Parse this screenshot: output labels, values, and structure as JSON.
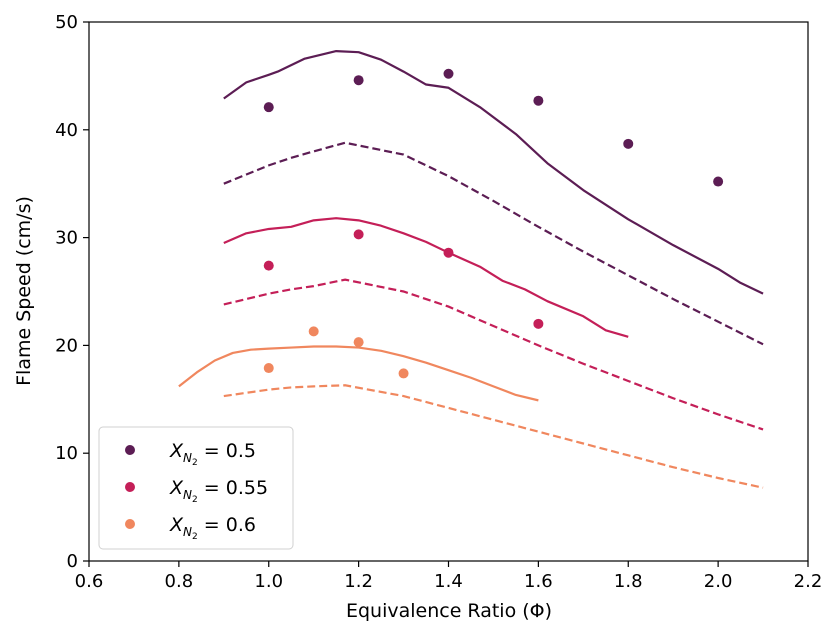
{
  "chart_data": {
    "type": "scatter",
    "xlabel": "Equivalence Ratio (Φ)",
    "ylabel": "Flame Speed (cm/s)",
    "xlim": [
      0.6,
      2.2
    ],
    "ylim": [
      0,
      50
    ],
    "xticks": [
      "0.6",
      "0.8",
      "1.0",
      "1.2",
      "1.4",
      "1.6",
      "1.8",
      "2.0",
      "2.2"
    ],
    "yticks": [
      "0",
      "10",
      "20",
      "30",
      "40",
      "50"
    ],
    "legend_position": "lower-left",
    "grid": false,
    "series": [
      {
        "name": "X_N2 = 0.5",
        "legend_main": "X",
        "legend_sub": "N",
        "legend_subsub": "2",
        "legend_value": " = 0.5",
        "color": "#5c1d54",
        "points": {
          "x": [
            1.0,
            1.2,
            1.4,
            1.6,
            1.8,
            2.0
          ],
          "y": [
            42.1,
            44.6,
            45.2,
            42.7,
            38.7,
            35.2
          ]
        },
        "solid": {
          "x": [
            0.9,
            0.95,
            1.0,
            1.02,
            1.08,
            1.15,
            1.2,
            1.25,
            1.3,
            1.35,
            1.4,
            1.47,
            1.55,
            1.62,
            1.7,
            1.8,
            1.9,
            2.0,
            2.05,
            2.1
          ],
          "y": [
            42.9,
            44.4,
            45.1,
            45.4,
            46.6,
            47.3,
            47.2,
            46.5,
            45.4,
            44.2,
            43.9,
            42.1,
            39.6,
            36.9,
            34.4,
            31.7,
            29.3,
            27.1,
            25.8,
            24.8
          ]
        },
        "dashed": {
          "x": [
            0.9,
            1.0,
            1.05,
            1.1,
            1.17,
            1.3,
            1.4,
            1.5,
            1.6,
            1.7,
            1.8,
            1.9,
            2.0,
            2.1
          ],
          "y": [
            35.0,
            36.7,
            37.4,
            38.0,
            38.8,
            37.7,
            35.7,
            33.4,
            31.0,
            28.7,
            26.5,
            24.3,
            22.2,
            20.1
          ]
        }
      },
      {
        "name": "X_N2 = 0.55",
        "legend_main": "X",
        "legend_sub": "N",
        "legend_subsub": "2",
        "legend_value": " = 0.55",
        "color": "#c41f58",
        "points": {
          "x": [
            1.0,
            1.2,
            1.4,
            1.6
          ],
          "y": [
            27.4,
            30.3,
            28.6,
            22.0
          ]
        },
        "solid": {
          "x": [
            0.9,
            0.95,
            1.0,
            1.05,
            1.1,
            1.15,
            1.2,
            1.25,
            1.3,
            1.35,
            1.4,
            1.47,
            1.52,
            1.57,
            1.62,
            1.7,
            1.75,
            1.8
          ],
          "y": [
            29.5,
            30.4,
            30.8,
            31.0,
            31.6,
            31.8,
            31.6,
            31.1,
            30.4,
            29.6,
            28.6,
            27.3,
            26.0,
            25.2,
            24.1,
            22.7,
            21.4,
            20.8
          ]
        },
        "dashed": {
          "x": [
            0.9,
            1.0,
            1.05,
            1.1,
            1.17,
            1.3,
            1.4,
            1.5,
            1.6,
            1.7,
            1.8,
            1.9,
            2.0,
            2.1
          ],
          "y": [
            23.8,
            24.8,
            25.2,
            25.5,
            26.1,
            25.0,
            23.6,
            21.8,
            20.0,
            18.3,
            16.7,
            15.1,
            13.6,
            12.2
          ]
        }
      },
      {
        "name": "X_N2 = 0.6",
        "legend_main": "X",
        "legend_sub": "N",
        "legend_subsub": "2",
        "legend_value": " = 0.6",
        "color": "#f0875e",
        "points": {
          "x": [
            1.0,
            1.1,
            1.2,
            1.3
          ],
          "y": [
            17.9,
            21.3,
            20.3,
            17.4
          ]
        },
        "solid": {
          "x": [
            0.8,
            0.84,
            0.88,
            0.92,
            0.96,
            1.0,
            1.05,
            1.1,
            1.15,
            1.2,
            1.25,
            1.3,
            1.35,
            1.4,
            1.45,
            1.5,
            1.55,
            1.6
          ],
          "y": [
            16.2,
            17.5,
            18.6,
            19.3,
            19.6,
            19.7,
            19.8,
            19.9,
            19.9,
            19.8,
            19.5,
            19.0,
            18.4,
            17.7,
            17.0,
            16.2,
            15.4,
            14.9
          ]
        },
        "dashed": {
          "x": [
            0.9,
            1.0,
            1.05,
            1.1,
            1.17,
            1.3,
            1.4,
            1.5,
            1.6,
            1.7,
            1.8,
            1.9,
            2.0,
            2.1
          ],
          "y": [
            15.3,
            15.9,
            16.1,
            16.2,
            16.3,
            15.3,
            14.2,
            13.1,
            12.0,
            10.9,
            9.8,
            8.7,
            7.7,
            6.8
          ]
        }
      }
    ]
  }
}
